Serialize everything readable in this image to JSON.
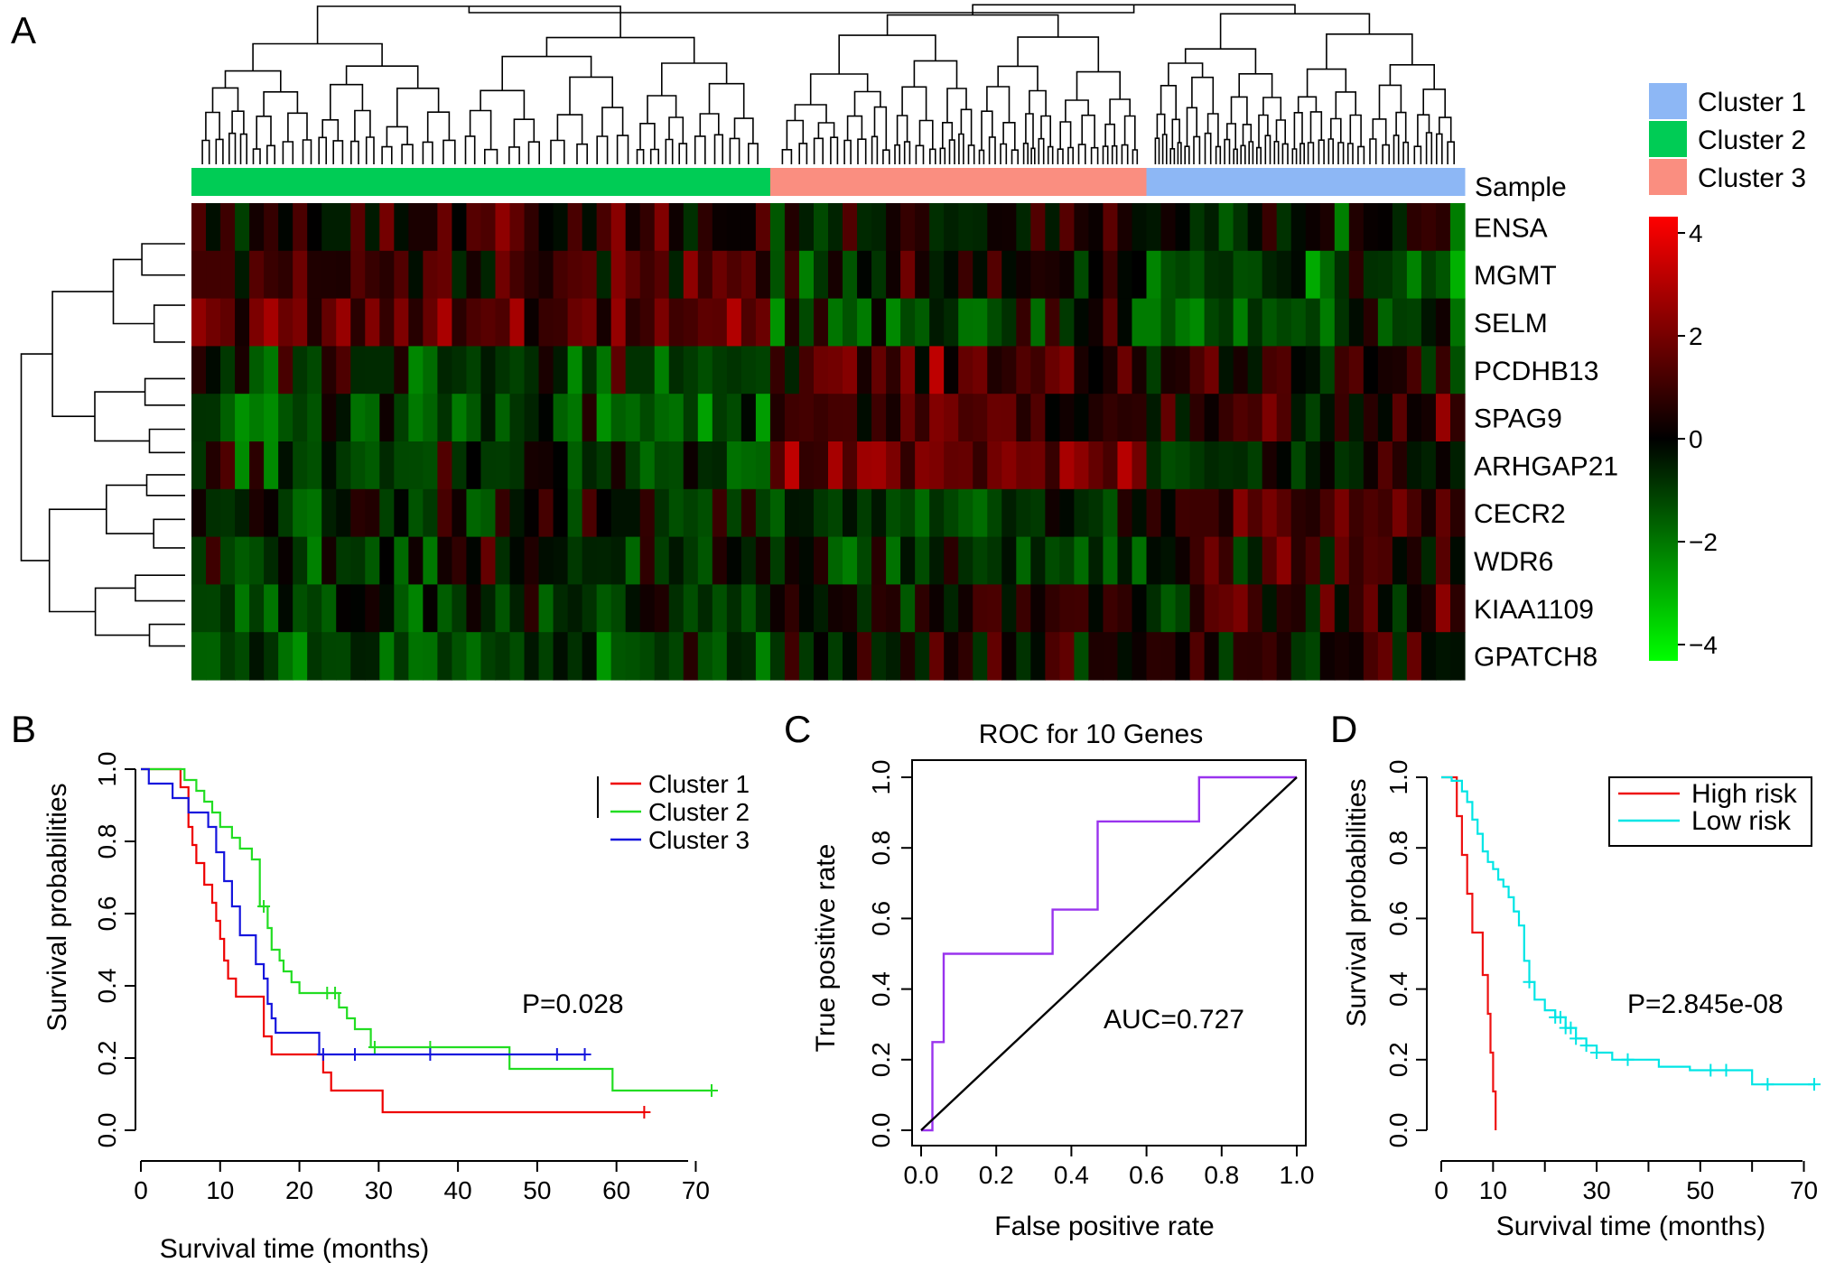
{
  "chart_data": [
    {
      "type": "heatmap",
      "panel": "A",
      "annotation_label": "Sample",
      "clusters": [
        {
          "name": "Cluster 1",
          "color": "#8db7f5",
          "samples": 22
        },
        {
          "name": "Cluster 2",
          "color": "#00cc55",
          "samples": 40
        },
        {
          "name": "Cluster 3",
          "color": "#fa8e80",
          "samples": 26
        }
      ],
      "sample_order": [
        "Cluster 2",
        "Cluster 3",
        "Cluster 1"
      ],
      "genes": [
        "ENSA",
        "MGMT",
        "SELM",
        "PCDHB13",
        "SPAG9",
        "ARHGAP21",
        "CECR2",
        "WDR6",
        "KIAA1109",
        "GPATCH8"
      ],
      "color_scale": {
        "min": -4,
        "max": 4,
        "ticks": [
          "4",
          "2",
          "0",
          "−2",
          "−4"
        ],
        "low": "#00ff00",
        "mid": "#000000",
        "high": "#ff0000"
      },
      "cluster_means": [
        [
          -0.4,
          0.6,
          -0.2
        ],
        [
          -0.9,
          0.9,
          -0.1
        ],
        [
          -1.0,
          1.2,
          -0.6
        ],
        [
          0.2,
          -0.5,
          0.9
        ],
        [
          0.3,
          -1.1,
          0.8
        ],
        [
          -0.6,
          -0.6,
          1.3
        ],
        [
          0.6,
          -0.4,
          -0.8
        ],
        [
          0.4,
          -0.3,
          -0.6
        ],
        [
          0.3,
          -0.6,
          0.1
        ],
        [
          0.4,
          -1.0,
          0.2
        ]
      ]
    },
    {
      "type": "line",
      "panel": "B",
      "xlabel": "Survival time (months)",
      "ylabel": "Survival probabilities",
      "xlim": [
        0,
        72
      ],
      "ylim": [
        0,
        1
      ],
      "xticks": [
        0,
        10,
        20,
        30,
        40,
        50,
        60,
        70
      ],
      "yticks": [
        "0.0",
        "0.2",
        "0.4",
        "0.6",
        "0.8",
        "1.0"
      ],
      "annotation": "P=0.028",
      "legend_position": "top-right",
      "series": [
        {
          "name": "Cluster 1",
          "color": "#ee0000",
          "x": [
            0,
            5,
            6,
            6.5,
            7,
            8,
            9,
            9.5,
            10,
            10.5,
            11,
            12,
            15.5,
            16.5,
            23,
            24,
            30.5,
            63.5
          ],
          "y": [
            1.0,
            0.95,
            0.84,
            0.79,
            0.74,
            0.68,
            0.63,
            0.58,
            0.53,
            0.47,
            0.42,
            0.37,
            0.26,
            0.21,
            0.16,
            0.11,
            0.05,
            0.05
          ],
          "censor_x": [
            63.5
          ]
        },
        {
          "name": "Cluster 2",
          "color": "#22dd22",
          "x": [
            0,
            5.5,
            7,
            8,
            9,
            10,
            11.5,
            12.5,
            14,
            15,
            16,
            16.5,
            17.5,
            18,
            19,
            20,
            22,
            25,
            26,
            27,
            29,
            46.5,
            59.5,
            72
          ],
          "y": [
            1.0,
            0.97,
            0.94,
            0.91,
            0.88,
            0.84,
            0.81,
            0.78,
            0.75,
            0.62,
            0.56,
            0.5,
            0.47,
            0.44,
            0.41,
            0.38,
            0.38,
            0.34,
            0.31,
            0.28,
            0.23,
            0.17,
            0.11,
            0.11
          ],
          "censor_x": [
            15.5,
            23.5,
            24.5,
            29.5,
            36.5,
            72
          ]
        },
        {
          "name": "Cluster 3",
          "color": "#1515dd",
          "x": [
            0,
            1,
            4,
            6,
            8.5,
            9.5,
            10.5,
            11.5,
            12.5,
            14.5,
            15.5,
            16,
            16.5,
            17,
            22.5,
            56
          ],
          "y": [
            1.0,
            0.96,
            0.92,
            0.88,
            0.84,
            0.77,
            0.69,
            0.62,
            0.54,
            0.46,
            0.42,
            0.35,
            0.31,
            0.27,
            0.21,
            0.21
          ],
          "censor_x": [
            23,
            27,
            36.5,
            52.5,
            56
          ]
        }
      ]
    },
    {
      "type": "line",
      "panel": "C",
      "title": "ROC for 10 Genes",
      "xlabel": "False positive rate",
      "ylabel": "True positive rate",
      "xlim": [
        0,
        1
      ],
      "ylim": [
        0,
        1
      ],
      "xticks": [
        "0.0",
        "0.2",
        "0.4",
        "0.6",
        "0.8",
        "1.0"
      ],
      "yticks": [
        "0.0",
        "0.2",
        "0.4",
        "0.6",
        "0.8",
        "1.0"
      ],
      "annotation": "AUC=0.727",
      "series": [
        {
          "color": "#9933ee",
          "x": [
            0.0,
            0.03,
            0.03,
            0.06,
            0.06,
            0.35,
            0.35,
            0.47,
            0.47,
            0.74,
            0.74,
            1.0
          ],
          "y": [
            0.0,
            0.0,
            0.25,
            0.25,
            0.5,
            0.5,
            0.625,
            0.625,
            0.875,
            0.875,
            1.0,
            1.0
          ]
        },
        {
          "color": "#000000",
          "x": [
            0,
            1
          ],
          "y": [
            0,
            1
          ]
        }
      ]
    },
    {
      "type": "line",
      "panel": "D",
      "xlabel": "Survival time (months)",
      "ylabel": "Survival probabilities",
      "xlim": [
        0,
        72
      ],
      "ylim": [
        0,
        1
      ],
      "xticks": [
        0,
        10,
        30,
        50,
        70
      ],
      "minor_xticks": [
        20,
        40,
        60
      ],
      "yticks": [
        "0.0",
        "0.2",
        "0.4",
        "0.6",
        "0.8",
        "1.0"
      ],
      "annotation": "P=2.845e-08",
      "legend_position": "top-right",
      "series": [
        {
          "name": "High risk",
          "color": "#ee1111",
          "x": [
            0,
            3,
            4,
            5,
            6,
            7,
            8,
            9,
            9.5,
            10,
            10.5
          ],
          "y": [
            1.0,
            0.89,
            0.78,
            0.67,
            0.56,
            0.56,
            0.44,
            0.33,
            0.22,
            0.11,
            0.0
          ],
          "censor_x": []
        },
        {
          "name": "Low risk",
          "color": "#00e5e5",
          "x": [
            0,
            2,
            4,
            5,
            6,
            7,
            8,
            9,
            10,
            11,
            12,
            13,
            14,
            15,
            16,
            17,
            18,
            20,
            22,
            24,
            26,
            28,
            30,
            33,
            36,
            42,
            48,
            60,
            72
          ],
          "y": [
            1.0,
            0.99,
            0.96,
            0.93,
            0.88,
            0.84,
            0.79,
            0.76,
            0.74,
            0.71,
            0.69,
            0.66,
            0.62,
            0.58,
            0.48,
            0.42,
            0.37,
            0.34,
            0.32,
            0.29,
            0.26,
            0.24,
            0.22,
            0.2,
            0.2,
            0.18,
            0.17,
            0.13,
            0.13
          ],
          "censor_x": [
            17,
            22,
            23,
            24,
            25,
            26,
            28,
            30,
            36,
            52,
            55,
            63,
            72
          ]
        }
      ]
    }
  ]
}
